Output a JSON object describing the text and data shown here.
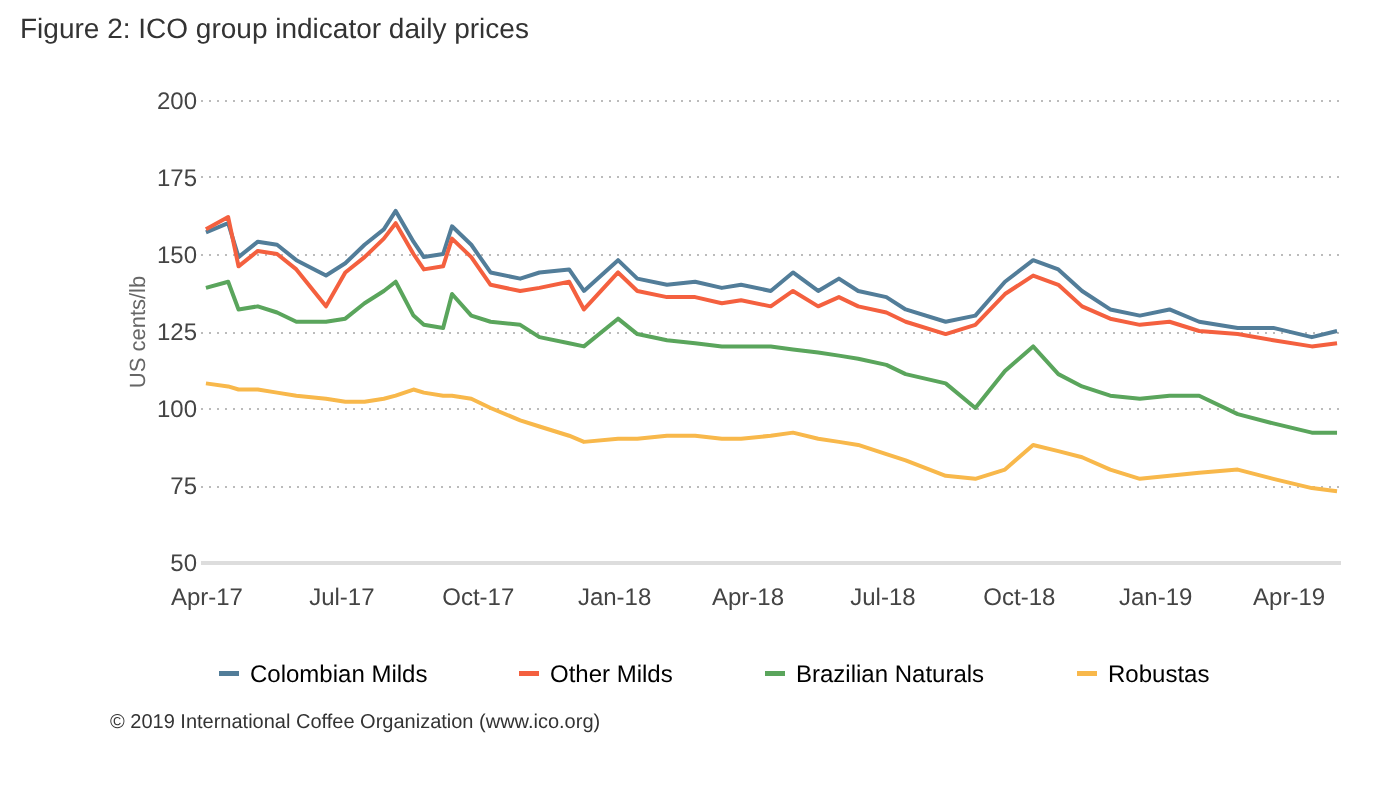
{
  "chart_data": {
    "type": "line",
    "title": "Figure 2: ICO group indicator daily prices",
    "ylabel": "US cents/lb",
    "x": [
      "2017-04-01",
      "2017-04-16",
      "2017-04-23",
      "2017-05-06",
      "2017-05-19",
      "2017-06-01",
      "2017-06-21",
      "2017-07-04",
      "2017-07-17",
      "2017-07-30",
      "2017-08-07",
      "2017-08-19",
      "2017-08-26",
      "2017-09-08",
      "2017-09-14",
      "2017-09-27",
      "2017-10-10",
      "2017-10-30",
      "2017-11-12",
      "2017-12-02",
      "2017-12-12",
      "2018-01-04",
      "2018-01-17",
      "2018-02-06",
      "2018-02-25",
      "2018-03-15",
      "2018-03-28",
      "2018-04-17",
      "2018-05-02",
      "2018-05-19",
      "2018-06-02",
      "2018-06-15",
      "2018-07-04",
      "2018-07-17",
      "2018-08-13",
      "2018-09-02",
      "2018-09-22",
      "2018-10-11",
      "2018-10-28",
      "2018-11-13",
      "2018-12-02",
      "2018-12-22",
      "2019-01-11",
      "2019-01-31",
      "2019-02-26",
      "2019-03-22",
      "2019-04-17",
      "2019-05-04"
    ],
    "series": [
      {
        "name": "Colombian Milds",
        "color": "#527d99",
        "values": [
          157,
          160,
          149,
          154,
          153,
          148,
          143,
          147,
          153,
          158,
          164,
          154,
          149,
          150,
          159,
          153,
          144,
          142,
          144,
          145,
          138,
          148,
          142,
          140,
          141,
          139,
          140,
          138,
          144,
          138,
          142,
          138,
          136,
          132,
          128,
          130,
          141,
          148,
          145,
          138,
          132,
          130,
          132,
          128,
          126,
          126,
          123,
          125
        ]
      },
      {
        "name": "Other Milds",
        "color": "#f4603f",
        "values": [
          158,
          162,
          146,
          151,
          150,
          145,
          133,
          144,
          149,
          155,
          160,
          150,
          145,
          146,
          155,
          149,
          140,
          138,
          139,
          141,
          132,
          144,
          138,
          136,
          136,
          134,
          135,
          133,
          138,
          133,
          136,
          133,
          131,
          128,
          124,
          127,
          137,
          143,
          140,
          133,
          129,
          127,
          128,
          125,
          124,
          122,
          120,
          121
        ]
      },
      {
        "name": "Brazilian Naturals",
        "color": "#5aa55c",
        "values": [
          139,
          141,
          132,
          133,
          131,
          128,
          128,
          129,
          134,
          138,
          141,
          130,
          127,
          126,
          137,
          130,
          128,
          127,
          123,
          121,
          120,
          129,
          124,
          122,
          121,
          120,
          120,
          120,
          119,
          118,
          117,
          116,
          114,
          111,
          108,
          100,
          112,
          120,
          111,
          107,
          104,
          103,
          104,
          104,
          98,
          95,
          92,
          92
        ]
      },
      {
        "name": "Robustas",
        "color": "#f8b84b",
        "values": [
          108,
          107,
          106,
          106,
          105,
          104,
          103,
          102,
          102,
          103,
          104,
          106,
          105,
          104,
          104,
          103,
          100,
          96,
          94,
          91,
          89,
          90,
          90,
          91,
          91,
          90,
          90,
          91,
          92,
          90,
          89,
          88,
          85,
          83,
          78,
          77,
          80,
          88,
          86,
          84,
          80,
          77,
          78,
          79,
          80,
          77,
          74,
          73
        ]
      }
    ],
    "xlim": [
      "2017-03-28",
      "2019-05-06"
    ],
    "xticks": [
      {
        "value": "2017-04-01",
        "label": "Apr-17"
      },
      {
        "value": "2017-07-01",
        "label": "Jul-17"
      },
      {
        "value": "2017-10-01",
        "label": "Oct-17"
      },
      {
        "value": "2018-01-01",
        "label": "Jan-18"
      },
      {
        "value": "2018-04-01",
        "label": "Apr-18"
      },
      {
        "value": "2018-07-01",
        "label": "Jul-18"
      },
      {
        "value": "2018-10-01",
        "label": "Oct-18"
      },
      {
        "value": "2019-01-01",
        "label": "Jan-19"
      },
      {
        "value": "2019-04-01",
        "label": "Apr-19"
      }
    ],
    "ylim": [
      50,
      200
    ],
    "yticks": [
      50,
      75,
      100,
      125,
      150,
      175,
      200
    ],
    "grid": "y",
    "legend": "bottom",
    "annotations": [
      "© 2019 International Coffee Organization (www.ico.org)"
    ]
  }
}
